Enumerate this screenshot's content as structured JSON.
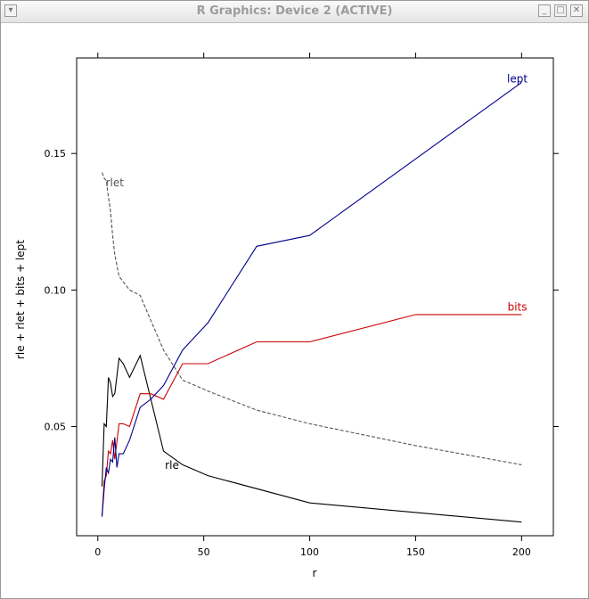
{
  "window": {
    "title": "R Graphics: Device 2 (ACTIVE)",
    "icons": {
      "menu": "window-menu-icon",
      "minimize": "minimize-icon",
      "maximize": "maximize-icon",
      "close": "close-icon"
    }
  },
  "chart_data": {
    "type": "line",
    "title": "",
    "xlabel": "r",
    "ylabel": "rle + rlet + bits + lept",
    "xlim": [
      -10,
      215
    ],
    "ylim": [
      0.01,
      0.185
    ],
    "xticks": [
      0,
      50,
      100,
      150,
      200
    ],
    "xtick_labels": [
      "0",
      "50",
      "100",
      "150",
      "200"
    ],
    "yticks": [
      0.05,
      0.1,
      0.15
    ],
    "ytick_labels": [
      "0.05",
      "0.10",
      "0.15"
    ],
    "grid": false,
    "legend": "none (direct labels on curves)",
    "series": [
      {
        "name": "rle",
        "color": "#000000",
        "dash": "solid",
        "label_at": [
          35,
          0.0345
        ],
        "x": [
          2,
          3,
          4,
          5,
          6,
          7,
          8,
          10,
          12,
          15,
          20,
          31,
          40,
          52,
          100,
          200
        ],
        "y": [
          0.028,
          0.051,
          0.05,
          0.068,
          0.066,
          0.061,
          0.062,
          0.075,
          0.073,
          0.068,
          0.076,
          0.041,
          0.036,
          0.032,
          0.022,
          0.015
        ]
      },
      {
        "name": "rlet",
        "color": "#555555",
        "dash": "dashed",
        "label_at": [
          8,
          0.138
        ],
        "x": [
          2,
          3,
          4,
          5,
          6,
          7,
          8,
          10,
          12,
          15,
          20,
          31,
          40,
          52,
          75,
          100,
          150,
          200
        ],
        "y": [
          0.143,
          0.141,
          0.14,
          0.134,
          0.129,
          0.12,
          0.113,
          0.105,
          0.103,
          0.1,
          0.098,
          0.078,
          0.067,
          0.063,
          0.056,
          0.051,
          0.043,
          0.036
        ]
      },
      {
        "name": "bits",
        "color": "#cc0000",
        "dash": "solid",
        "label_at": [
          198,
          0.0925
        ],
        "x": [
          2,
          3,
          4,
          5,
          6,
          7,
          8,
          10,
          12,
          15,
          20,
          25,
          31,
          40,
          45,
          52,
          75,
          100,
          150,
          200
        ],
        "y": [
          0.017,
          0.03,
          0.032,
          0.041,
          0.04,
          0.045,
          0.038,
          0.051,
          0.051,
          0.05,
          0.062,
          0.062,
          0.06,
          0.073,
          0.073,
          0.073,
          0.081,
          0.081,
          0.091,
          0.091
        ]
      },
      {
        "name": "lept",
        "color": "#00008b",
        "dash": "solid",
        "label_at": [
          198,
          0.176
        ],
        "x": [
          2,
          3,
          4,
          5,
          6,
          7,
          8,
          9,
          10,
          12,
          15,
          20,
          25,
          31,
          40,
          52,
          75,
          100,
          150,
          200
        ],
        "y": [
          0.017,
          0.027,
          0.035,
          0.033,
          0.038,
          0.037,
          0.046,
          0.035,
          0.04,
          0.04,
          0.045,
          0.057,
          0.06,
          0.065,
          0.078,
          0.088,
          0.116,
          0.12,
          0.148,
          0.176
        ]
      }
    ]
  }
}
